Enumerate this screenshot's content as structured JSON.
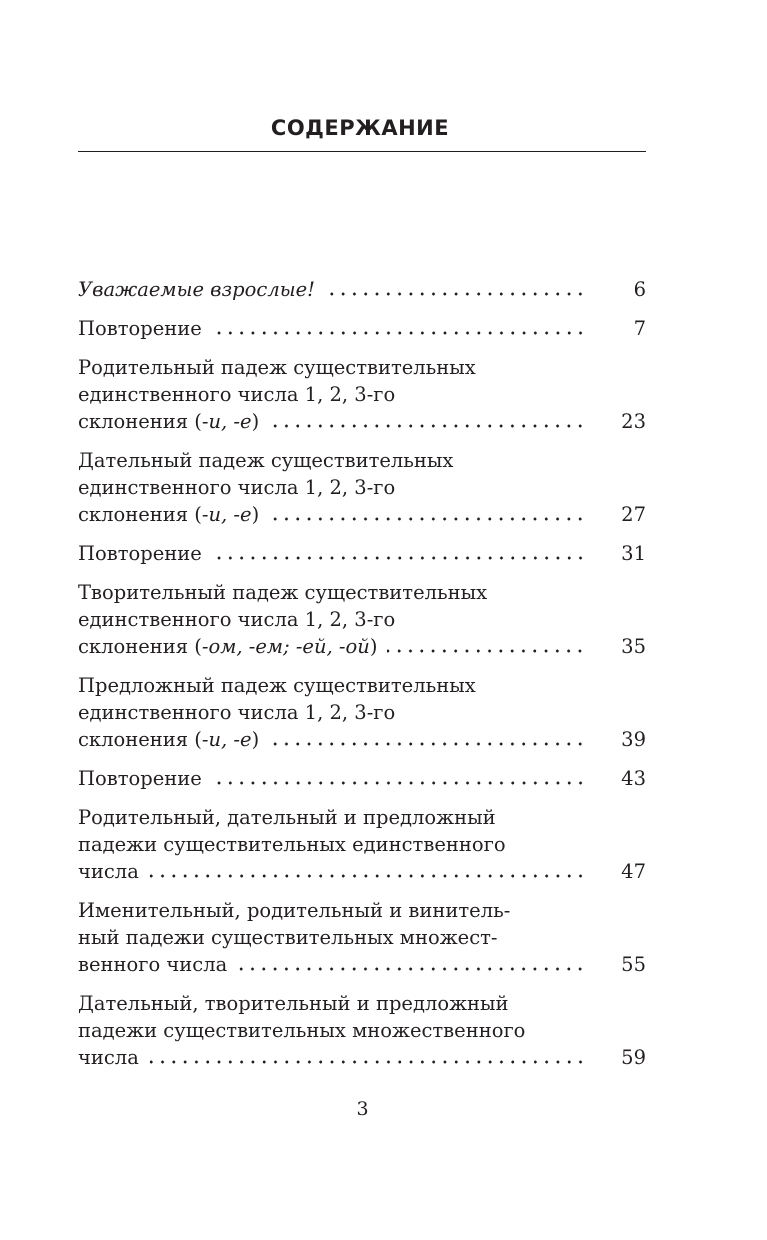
{
  "heading": "СОДЕРЖАНИЕ",
  "entries": [
    {
      "lines": [],
      "last": [
        {
          "text": "Уважаемые взрослые!",
          "italic": true
        }
      ],
      "page": "6"
    },
    {
      "lines": [],
      "last": [
        {
          "text": "Повторение",
          "italic": false
        }
      ],
      "page": "7"
    },
    {
      "lines": [
        "Родительный падеж существительных",
        "единственного числа 1, 2, 3-го"
      ],
      "last": [
        {
          "text": "склонения (",
          "italic": false
        },
        {
          "text": "-и, -е",
          "italic": true
        },
        {
          "text": ")",
          "italic": false
        }
      ],
      "page": "23"
    },
    {
      "lines": [
        "Дательный падеж существительных",
        "единственного числа 1, 2, 3-го"
      ],
      "last": [
        {
          "text": "склонения (",
          "italic": false
        },
        {
          "text": "-и, -е",
          "italic": true
        },
        {
          "text": ")",
          "italic": false
        }
      ],
      "page": "27"
    },
    {
      "lines": [],
      "last": [
        {
          "text": "Повторение",
          "italic": false
        }
      ],
      "page": "31"
    },
    {
      "lines": [
        "Творительный падеж существительных",
        "единственного числа 1, 2, 3-го"
      ],
      "last": [
        {
          "text": "склонения (",
          "italic": false
        },
        {
          "text": "-ом, -ем; -ей, -ой",
          "italic": true
        },
        {
          "text": ")",
          "italic": false
        }
      ],
      "page": "35"
    },
    {
      "lines": [
        "Предложный падеж существительных",
        "единственного числа 1, 2, 3-го"
      ],
      "last": [
        {
          "text": "склонения (",
          "italic": false
        },
        {
          "text": "-и, -е",
          "italic": true
        },
        {
          "text": ")",
          "italic": false
        }
      ],
      "page": "39"
    },
    {
      "lines": [],
      "last": [
        {
          "text": "Повторение",
          "italic": false
        }
      ],
      "page": "43"
    },
    {
      "lines": [
        "Родительный, дательный и предложный",
        "падежи существительных единственного"
      ],
      "last": [
        {
          "text": "числа",
          "italic": false
        }
      ],
      "page": "47"
    },
    {
      "lines": [
        "Именительный, родительный и винитель-",
        "ный падежи существительных множест-"
      ],
      "last": [
        {
          "text": "венного числа",
          "italic": false
        }
      ],
      "page": "55"
    },
    {
      "lines": [
        "Дательный, творительный и предложный",
        "падежи существительных множественного"
      ],
      "last": [
        {
          "text": "числа",
          "italic": false
        }
      ],
      "page": "59"
    }
  ],
  "folio": "3"
}
